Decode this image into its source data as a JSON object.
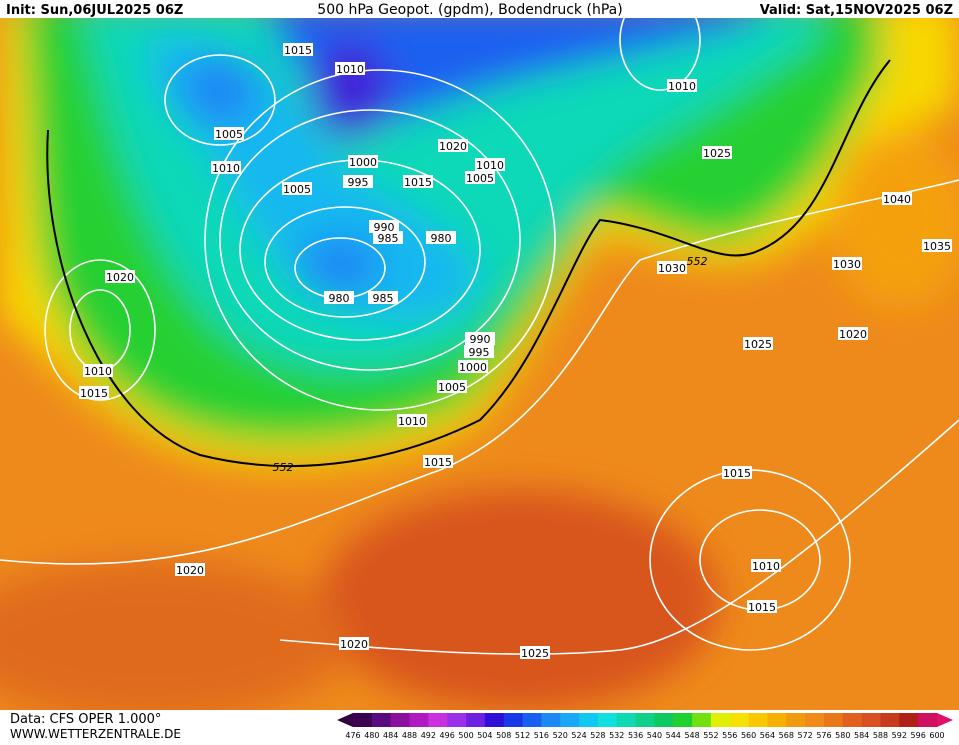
{
  "header": {
    "init": "Init: Sun,06JUL2025 06Z",
    "title": "500 hPa Geopot. (gpdm), Bodendruck (hPa)",
    "valid": "Valid: Sat,15NOV2025 06Z"
  },
  "isobar_labels": [
    "1015",
    "1010",
    "1005",
    "1010",
    "1005",
    "1000",
    "995",
    "1015",
    "1020",
    "1010",
    "1005",
    "990",
    "985",
    "980",
    "980",
    "985",
    "990",
    "995",
    "1000",
    "1005",
    "1010",
    "1015",
    "1020",
    "1010",
    "1015",
    "1020",
    "1020",
    "1025",
    "1010",
    "1025",
    "1040",
    "1035",
    "1030",
    "1030",
    "1025",
    "1020",
    "1015",
    "1010",
    "1015"
  ],
  "contour_labels": [
    "552",
    "552"
  ],
  "footer": {
    "data": "Data: CFS OPER 1.000°",
    "site": "WWW.WETTERZENTRALE.DE"
  },
  "colorbar": {
    "values": [
      476,
      480,
      484,
      488,
      492,
      496,
      500,
      504,
      508,
      512,
      516,
      520,
      524,
      528,
      532,
      536,
      540,
      544,
      548,
      552,
      556,
      560,
      564,
      568,
      572,
      576,
      580,
      584,
      588,
      592,
      596,
      600
    ],
    "colors": [
      "#3c0050",
      "#5a0a80",
      "#8c10a0",
      "#b018c0",
      "#c830e0",
      "#9a30e8",
      "#7020e0",
      "#3010d8",
      "#1838e8",
      "#1a60f0",
      "#1a88f5",
      "#18a8f5",
      "#10c8f0",
      "#10e0e0",
      "#10d8b0",
      "#10d088",
      "#10c860",
      "#20d030",
      "#70e010",
      "#e0f000",
      "#f8e000",
      "#f8c800",
      "#f8b000",
      "#f09a10",
      "#f08a18",
      "#e87818",
      "#e06020",
      "#d85020",
      "#c83a20",
      "#b02018",
      "#d01060"
    ],
    "end_colors": [
      "#300040",
      "#e0106a"
    ]
  }
}
